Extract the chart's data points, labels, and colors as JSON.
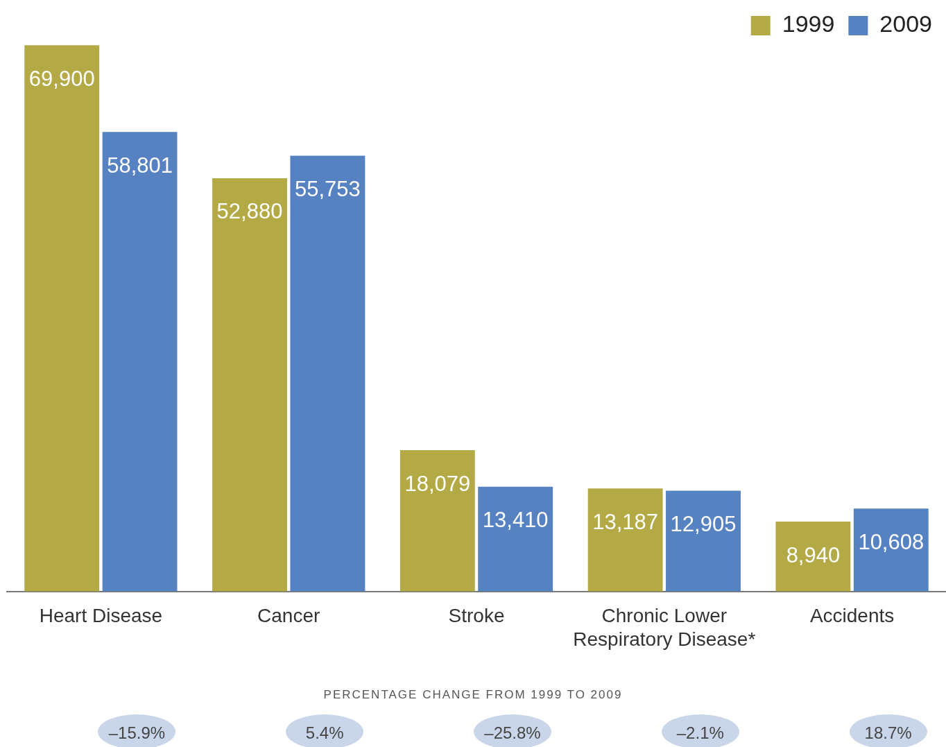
{
  "chart_data": {
    "type": "bar",
    "categories": [
      "Heart Disease",
      "Cancer",
      "Stroke",
      "Chronic Lower Respiratory Disease*",
      "Accidents"
    ],
    "series": [
      {
        "name": "1999",
        "color": "#b3aa45",
        "values": [
          69900,
          52880,
          18079,
          13187,
          8940
        ],
        "value_labels": [
          "69,900",
          "52,880",
          "18,079",
          "13,187",
          "8,940"
        ]
      },
      {
        "name": "2009",
        "color": "#5682c1",
        "values": [
          58801,
          55753,
          13410,
          12905,
          10608
        ],
        "value_labels": [
          "58,801",
          "55,753",
          "13,410",
          "12,905",
          "10,608"
        ]
      }
    ],
    "legend": "top right",
    "grid": false,
    "annotations": [
      "PERCENTAGE CHANGE FROM 1999 TO 2009",
      "–15.9%",
      "5.4%",
      "–25.8%",
      "–2.1%",
      "18.7%"
    ]
  }
}
